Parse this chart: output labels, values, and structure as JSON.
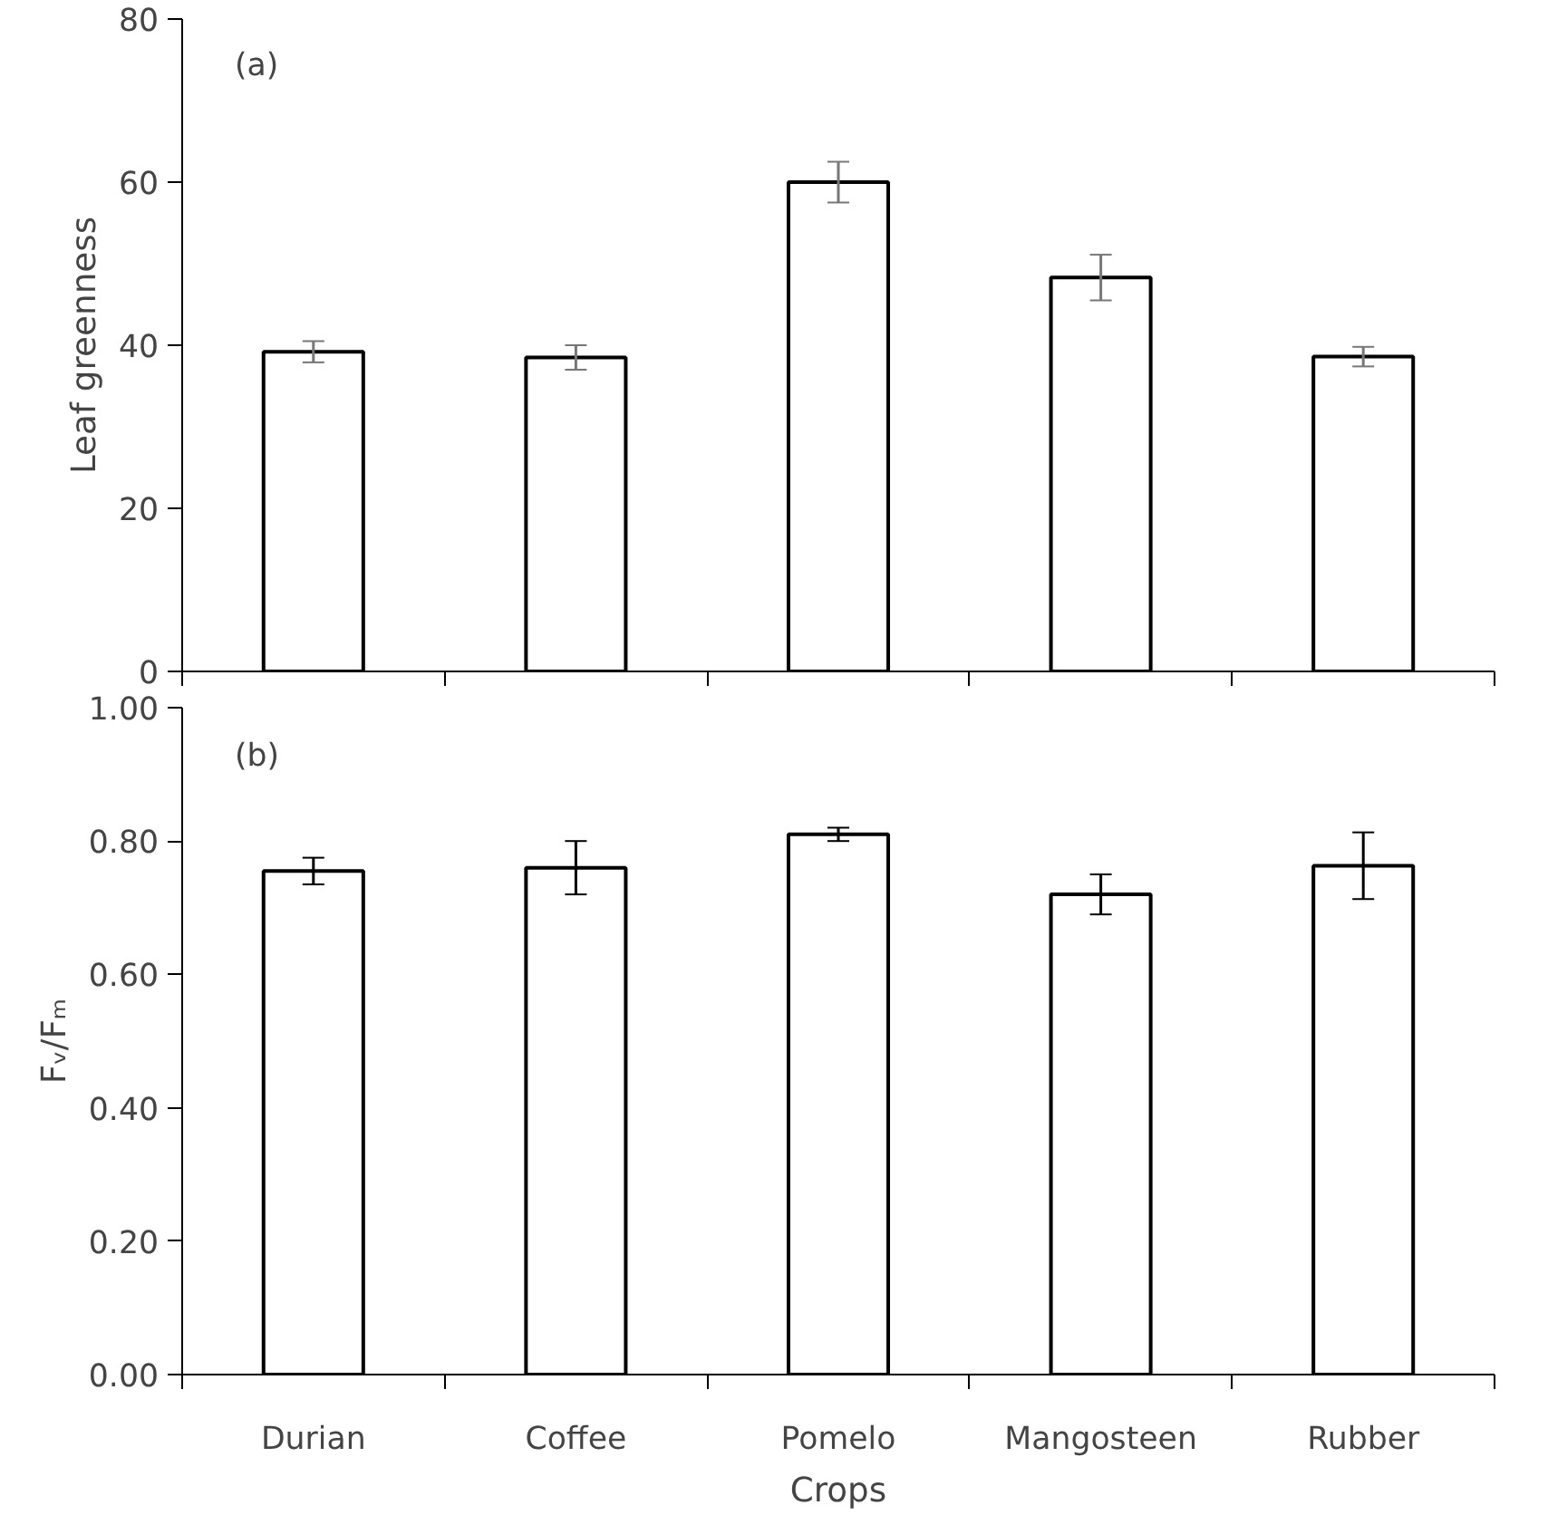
{
  "chart_data": [
    {
      "type": "bar",
      "categories": [
        null,
        null,
        null,
        null,
        null
      ],
      "ylabel": "Leaf greenness",
      "annotations": [
        "(a)"
      ],
      "series": [
        {
          "color": "#ffffff",
          "values": [
            39.2,
            38.5,
            60.0,
            48.3,
            38.6
          ],
          "errors": [
            1.3,
            1.5,
            2.5,
            2.8,
            1.2
          ]
        }
      ],
      "ylim": [
        0,
        80
      ],
      "yticks": [
        0,
        20,
        40,
        60,
        80
      ],
      "tick_labels": "y"
    },
    {
      "type": "bar",
      "categories": [
        "Durian",
        "Coffee",
        "Pomelo",
        "Mangosteen",
        "Rubber"
      ],
      "xlabel": "Crops",
      "ylabel": "Fᵥ/Fₘ",
      "annotations": [
        "(b)"
      ],
      "series": [
        {
          "color": "#ffffff",
          "values": [
            0.755,
            0.76,
            0.81,
            0.72,
            0.763
          ],
          "errors": [
            0.02,
            0.04,
            0.01,
            0.03,
            0.05
          ]
        }
      ],
      "ylim": [
        0,
        1
      ],
      "yticks": [
        {
          "value": 0,
          "label": "0.00"
        },
        {
          "value": 0.2,
          "label": "0.20"
        },
        {
          "value": 0.4,
          "label": "0.40"
        },
        {
          "value": 0.6,
          "label": "0.60"
        },
        {
          "value": 0.8,
          "label": "0.80"
        },
        {
          "value": 1,
          "label": "1.00"
        }
      ]
    }
  ]
}
